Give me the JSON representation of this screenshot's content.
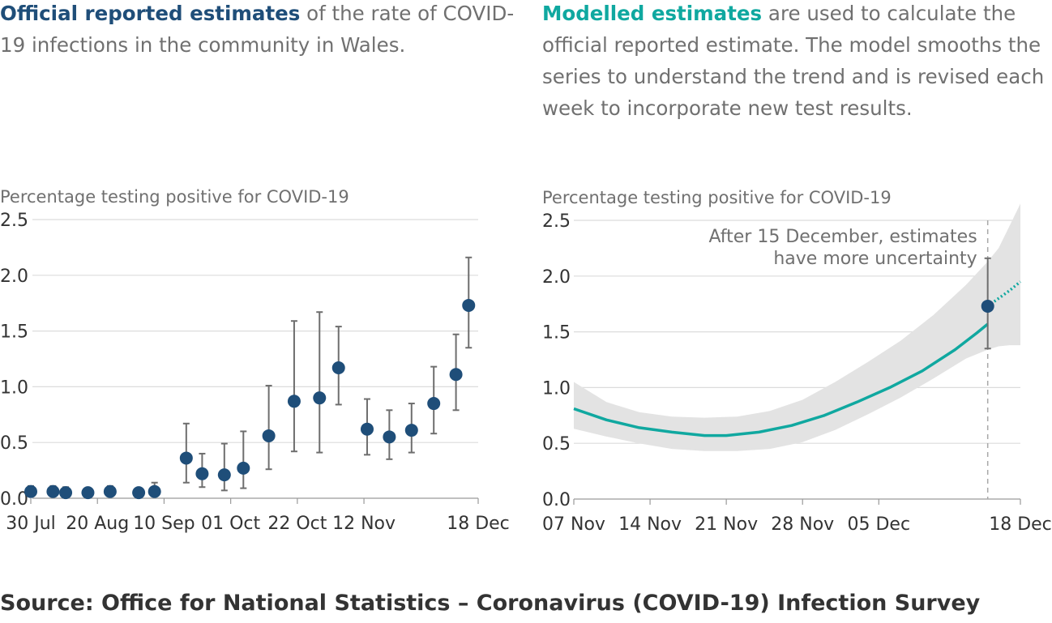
{
  "intro_left": {
    "highlight": "Official reported estimates",
    "rest": " of the rate of COVID-19 infections in the community in Wales."
  },
  "intro_right": {
    "highlight": "Modelled estimates",
    "rest": " are used to calculate the official reported estimate. The model smooths the series to understand the trend and is revised each week to incorporate new test results."
  },
  "source": "Source: Office for National Statistics – Coronavirus (COVID-19) Infection Survey",
  "colors": {
    "official": "#1f4e79",
    "modelled": "#10a8a0",
    "band": "#e3e3e3",
    "errorbar": "#6e6e6e",
    "grid": "#dcdcdc"
  },
  "chart_data": [
    {
      "type": "scatter",
      "ylabel": "Percentage testing positive for COVID-19",
      "ylim": [
        0,
        2.5
      ],
      "yticks": [
        "0.0",
        "0.5",
        "1.0",
        "1.5",
        "2.0",
        "2.5"
      ],
      "xlim": [
        "2020-07-30",
        "2020-12-18"
      ],
      "xticks": [
        {
          "date": "2020-07-30",
          "label": "30 Jul"
        },
        {
          "date": "2020-08-20",
          "label": "20 Aug"
        },
        {
          "date": "2020-09-10",
          "label": "10 Sep"
        },
        {
          "date": "2020-10-01",
          "label": "01 Oct"
        },
        {
          "date": "2020-10-22",
          "label": "22 Oct"
        },
        {
          "date": "2020-11-12",
          "label": "12 Nov"
        },
        {
          "date": "2020-12-18",
          "label": "18 Dec"
        }
      ],
      "grid": true,
      "points": [
        {
          "x": "2020-07-30",
          "y": 0.06,
          "lo": 0.03,
          "hi": 0.11
        },
        {
          "x": "2020-08-06",
          "y": 0.06,
          "lo": 0.03,
          "hi": 0.11
        },
        {
          "x": "2020-08-10",
          "y": 0.05,
          "lo": 0.03,
          "hi": 0.1
        },
        {
          "x": "2020-08-17",
          "y": 0.05,
          "lo": 0.03,
          "hi": 0.08
        },
        {
          "x": "2020-08-24",
          "y": 0.06,
          "lo": 0.03,
          "hi": 0.11
        },
        {
          "x": "2020-09-02",
          "y": 0.05,
          "lo": 0.03,
          "hi": 0.08
        },
        {
          "x": "2020-09-07",
          "y": 0.06,
          "lo": 0.02,
          "hi": 0.14
        },
        {
          "x": "2020-09-17",
          "y": 0.36,
          "lo": 0.14,
          "hi": 0.67
        },
        {
          "x": "2020-09-22",
          "y": 0.22,
          "lo": 0.1,
          "hi": 0.4
        },
        {
          "x": "2020-09-29",
          "y": 0.21,
          "lo": 0.07,
          "hi": 0.49
        },
        {
          "x": "2020-10-05",
          "y": 0.27,
          "lo": 0.09,
          "hi": 0.6
        },
        {
          "x": "2020-10-13",
          "y": 0.56,
          "lo": 0.26,
          "hi": 1.01
        },
        {
          "x": "2020-10-21",
          "y": 0.87,
          "lo": 0.42,
          "hi": 1.59
        },
        {
          "x": "2020-10-29",
          "y": 0.9,
          "lo": 0.41,
          "hi": 1.67
        },
        {
          "x": "2020-11-04",
          "y": 1.17,
          "lo": 0.84,
          "hi": 1.54
        },
        {
          "x": "2020-11-13",
          "y": 0.62,
          "lo": 0.39,
          "hi": 0.89
        },
        {
          "x": "2020-11-20",
          "y": 0.55,
          "lo": 0.35,
          "hi": 0.79
        },
        {
          "x": "2020-11-27",
          "y": 0.61,
          "lo": 0.41,
          "hi": 0.85
        },
        {
          "x": "2020-12-04",
          "y": 0.85,
          "lo": 0.58,
          "hi": 1.18
        },
        {
          "x": "2020-12-11",
          "y": 1.11,
          "lo": 0.79,
          "hi": 1.47
        },
        {
          "x": "2020-12-15",
          "y": 1.73,
          "lo": 1.35,
          "hi": 2.16
        }
      ]
    },
    {
      "type": "line",
      "ylabel": "Percentage testing positive for COVID-19",
      "ylim": [
        0,
        2.5
      ],
      "yticks": [
        "0.0",
        "0.5",
        "1.0",
        "1.5",
        "2.0",
        "2.5"
      ],
      "xlim": [
        "2020-11-07",
        "2020-12-18"
      ],
      "xticks": [
        {
          "date": "2020-11-07",
          "label": "07 Nov"
        },
        {
          "date": "2020-11-14",
          "label": "14 Nov"
        },
        {
          "date": "2020-11-21",
          "label": "21 Nov"
        },
        {
          "date": "2020-11-28",
          "label": "28 Nov"
        },
        {
          "date": "2020-12-05",
          "label": "05 Dec"
        },
        {
          "date": "2020-12-18",
          "label": "18 Dec"
        }
      ],
      "grid": true,
      "annotation": {
        "date": "2020-12-15",
        "text": [
          "After 15 December, estimates",
          "have more uncertainty"
        ]
      },
      "model_line": [
        {
          "x": "2020-11-07",
          "y": 0.81
        },
        {
          "x": "2020-11-10",
          "y": 0.71
        },
        {
          "x": "2020-11-13",
          "y": 0.64
        },
        {
          "x": "2020-11-16",
          "y": 0.6
        },
        {
          "x": "2020-11-19",
          "y": 0.57
        },
        {
          "x": "2020-11-21",
          "y": 0.57
        },
        {
          "x": "2020-11-24",
          "y": 0.6
        },
        {
          "x": "2020-11-27",
          "y": 0.66
        },
        {
          "x": "2020-11-30",
          "y": 0.75
        },
        {
          "x": "2020-12-03",
          "y": 0.87
        },
        {
          "x": "2020-12-06",
          "y": 1.0
        },
        {
          "x": "2020-12-09",
          "y": 1.15
        },
        {
          "x": "2020-12-12",
          "y": 1.34
        },
        {
          "x": "2020-12-14",
          "y": 1.49
        },
        {
          "x": "2020-12-15",
          "y": 1.57
        }
      ],
      "model_line_uncertain": [
        {
          "x": "2020-12-15",
          "y": 1.73
        },
        {
          "x": "2020-12-16",
          "y": 1.8
        },
        {
          "x": "2020-12-17",
          "y": 1.87
        },
        {
          "x": "2020-12-18",
          "y": 1.95
        }
      ],
      "band": [
        {
          "x": "2020-11-07",
          "lo": 0.63,
          "hi": 1.05
        },
        {
          "x": "2020-11-10",
          "lo": 0.56,
          "hi": 0.87
        },
        {
          "x": "2020-11-13",
          "lo": 0.5,
          "hi": 0.78
        },
        {
          "x": "2020-11-16",
          "lo": 0.45,
          "hi": 0.74
        },
        {
          "x": "2020-11-19",
          "lo": 0.43,
          "hi": 0.73
        },
        {
          "x": "2020-11-22",
          "lo": 0.43,
          "hi": 0.74
        },
        {
          "x": "2020-11-25",
          "lo": 0.45,
          "hi": 0.79
        },
        {
          "x": "2020-11-28",
          "lo": 0.51,
          "hi": 0.89
        },
        {
          "x": "2020-12-01",
          "lo": 0.62,
          "hi": 1.05
        },
        {
          "x": "2020-12-04",
          "lo": 0.76,
          "hi": 1.23
        },
        {
          "x": "2020-12-07",
          "lo": 0.91,
          "hi": 1.42
        },
        {
          "x": "2020-12-10",
          "lo": 1.08,
          "hi": 1.65
        },
        {
          "x": "2020-12-13",
          "lo": 1.26,
          "hi": 1.92
        },
        {
          "x": "2020-12-15",
          "lo": 1.34,
          "hi": 2.13
        },
        {
          "x": "2020-12-16",
          "lo": 1.37,
          "hi": 2.25
        },
        {
          "x": "2020-12-17",
          "lo": 1.38,
          "hi": 2.45
        },
        {
          "x": "2020-12-18",
          "lo": 1.38,
          "hi": 2.65
        }
      ],
      "point": {
        "x": "2020-12-15",
        "y": 1.73,
        "lo": 1.35,
        "hi": 2.16
      }
    }
  ]
}
